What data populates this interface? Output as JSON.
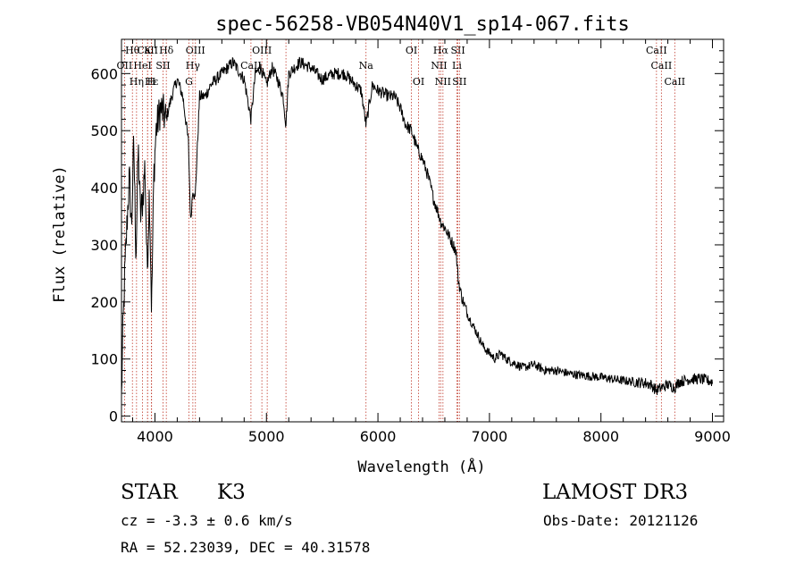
{
  "chart_data": {
    "type": "line",
    "title": "spec-56258-VB054N40V1_sp14-067.fits",
    "xlabel": "Wavelength (Å)",
    "ylabel": "Flux (relative)",
    "xlim": [
      3700,
      9100
    ],
    "ylim": [
      -10,
      660
    ],
    "xticks": [
      4000,
      5000,
      6000,
      7000,
      8000,
      9000
    ],
    "yticks": [
      0,
      100,
      200,
      300,
      400,
      500,
      600
    ],
    "series": [
      {
        "name": "flux",
        "x": [
          3700,
          3710,
          3730,
          3750,
          3770,
          3790,
          3810,
          3830,
          3850,
          3870,
          3890,
          3910,
          3930,
          3950,
          3970,
          3990,
          4010,
          4050,
          4100,
          4150,
          4200,
          4250,
          4300,
          4320,
          4340,
          4360,
          4400,
          4450,
          4500,
          4600,
          4700,
          4800,
          4861,
          4900,
          4950,
          5000,
          5050,
          5100,
          5150,
          5175,
          5200,
          5300,
          5400,
          5500,
          5600,
          5700,
          5800,
          5850,
          5893,
          5950,
          6000,
          6100,
          6150,
          6200,
          6250,
          6300,
          6350,
          6400,
          6450,
          6500,
          6550,
          6563,
          6600,
          6650,
          6700,
          6720,
          6750,
          6800,
          6850,
          6900,
          6950,
          7000,
          7050,
          7100,
          7150,
          7200,
          7300,
          7400,
          7500,
          7600,
          7700,
          7800,
          7900,
          8000,
          8100,
          8200,
          8300,
          8400,
          8450,
          8498,
          8542,
          8600,
          8662,
          8700,
          8800,
          8900,
          9000
        ],
        "values": [
          30,
          130,
          250,
          340,
          420,
          330,
          480,
          280,
          470,
          350,
          380,
          440,
          250,
          400,
          180,
          420,
          500,
          540,
          520,
          560,
          590,
          560,
          480,
          340,
          400,
          380,
          560,
          560,
          580,
          600,
          620,
          590,
          520,
          600,
          610,
          580,
          610,
          590,
          560,
          510,
          600,
          620,
          610,
          590,
          600,
          600,
          580,
          570,
          510,
          580,
          570,
          560,
          560,
          540,
          510,
          500,
          470,
          450,
          420,
          380,
          350,
          340,
          330,
          310,
          290,
          240,
          210,
          180,
          160,
          140,
          120,
          110,
          100,
          110,
          100,
          95,
          85,
          90,
          80,
          80,
          75,
          72,
          70,
          68,
          65,
          62,
          60,
          58,
          55,
          45,
          50,
          55,
          50,
          60,
          65,
          65,
          60
        ]
      }
    ],
    "lines": [
      {
        "name": "CaII",
        "wavelength": 3934,
        "row": 0
      },
      {
        "name": "Hθ",
        "wavelength": 3798,
        "row": 0
      },
      {
        "name": "K",
        "wavelength": 3934,
        "row": 0
      },
      {
        "name": "Hδ",
        "wavelength": 4102,
        "row": 0
      },
      {
        "name": "OIII",
        "wavelength": 4363,
        "row": 0
      },
      {
        "name": "OIII",
        "wavelength": 4959,
        "row": 0
      },
      {
        "name": "OI",
        "wavelength": 6300,
        "row": 0
      },
      {
        "name": "Hα",
        "wavelength": 6563,
        "row": 0
      },
      {
        "name": "SII",
        "wavelength": 6717,
        "row": 0
      },
      {
        "name": "CaII",
        "wavelength": 8498,
        "row": 0
      },
      {
        "name": "OII",
        "wavelength": 3727,
        "row": 1
      },
      {
        "name": "HeI",
        "wavelength": 3889,
        "row": 1
      },
      {
        "name": "SII",
        "wavelength": 4072,
        "row": 1
      },
      {
        "name": "Hγ",
        "wavelength": 4340,
        "row": 1
      },
      {
        "name": "CaII",
        "wavelength": 4861,
        "row": 1
      },
      {
        "name": "Na",
        "wavelength": 5893,
        "row": 1
      },
      {
        "name": "NII",
        "wavelength": 6548,
        "row": 1
      },
      {
        "name": "Li",
        "wavelength": 6708,
        "row": 1
      },
      {
        "name": "CaII",
        "wavelength": 8542,
        "row": 1
      },
      {
        "name": "Hε",
        "wavelength": 3970,
        "row": 2
      },
      {
        "name": "Hη",
        "wavelength": 3835,
        "row": 2
      },
      {
        "name": "H",
        "wavelength": 3968,
        "row": 2
      },
      {
        "name": "G",
        "wavelength": 4305,
        "row": 2
      },
      {
        "name": "OI",
        "wavelength": 6364,
        "row": 2
      },
      {
        "name": "NII",
        "wavelength": 6583,
        "row": 2
      },
      {
        "name": "SII",
        "wavelength": 6731,
        "row": 2
      },
      {
        "name": "CaII",
        "wavelength": 8662,
        "row": 2
      },
      {
        "name": "",
        "wavelength": 5175,
        "row": -1
      },
      {
        "name": "",
        "wavelength": 5007,
        "row": -1
      }
    ]
  },
  "info": {
    "class": "STAR",
    "subclass": "K3",
    "survey": "LAMOST DR3",
    "cz": "cz = -3.3 ± 0.6 km/s",
    "obs_date": "Obs-Date: 20121126",
    "coords": "RA =  52.23039, DEC =  40.31578"
  }
}
